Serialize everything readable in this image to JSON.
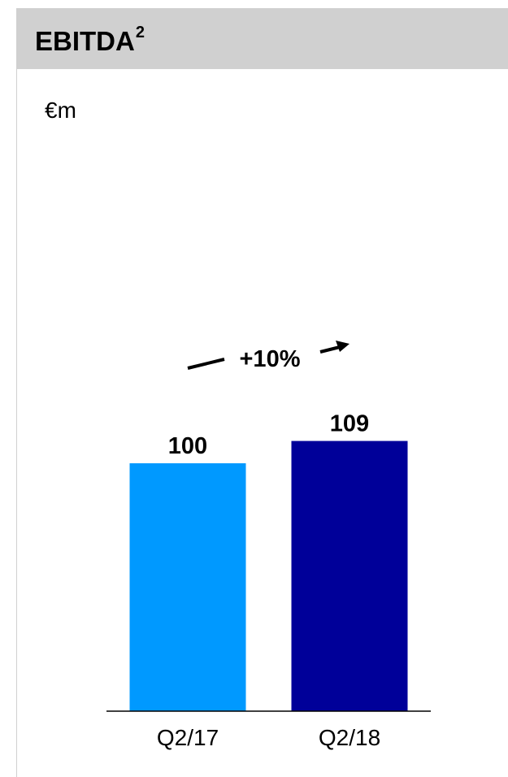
{
  "title": "EBITDA",
  "title_superscript": "2",
  "unit": "€m",
  "change_label": "+10%",
  "colors": {
    "header_bg": "#d0d0d0",
    "bar_q217": "#0099ff",
    "bar_q218": "#000099"
  },
  "chart_data": {
    "type": "bar",
    "title": "EBITDA",
    "ylabel": "€m",
    "categories": [
      "Q2/17",
      "Q2/18"
    ],
    "values": [
      100,
      109
    ],
    "colors": [
      "#0099ff",
      "#000099"
    ],
    "ylim": [
      0,
      200
    ],
    "grid": false,
    "annotations": [
      "+10%"
    ]
  }
}
